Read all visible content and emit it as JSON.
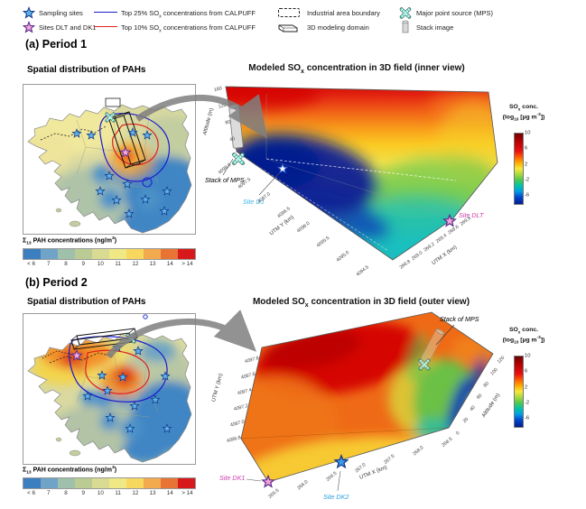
{
  "legend": {
    "items": [
      {
        "label": "Sampling sites"
      },
      {
        "label": "Sites DLT and DK1"
      },
      {
        "pre": "Top 25% SO",
        "sub": "x",
        "post": " concentrations from CALPUFF"
      },
      {
        "pre": "Top 10% SO",
        "sub": "x",
        "post": " concentrations from CALPUFF"
      },
      {
        "label": "Industrial area boundary"
      },
      {
        "label": "3D modeling domain"
      },
      {
        "label": "Major point source (MPS)"
      },
      {
        "label": "Stack image"
      }
    ]
  },
  "pah_colorbar": {
    "label_sigma": "Σ",
    "label_sub": "13",
    "label_main": " PAH concentrations (ng/m",
    "label_sup": "3",
    "label_close": ")",
    "ticks": [
      "< 6",
      "7",
      "8",
      "9",
      "10",
      "11",
      "12",
      "13",
      "14",
      "> 14"
    ],
    "colors": [
      "#3c7fc0",
      "#6fa3c8",
      "#9fc0aa",
      "#bacc93",
      "#d9db93",
      "#f0e884",
      "#f8d75f",
      "#f3a94d",
      "#e97334",
      "#d7191c"
    ]
  },
  "sox_colorbar": {
    "title_pre": "SO",
    "title_sub": "x",
    "title_post": " conc.",
    "unit_pre": "(log",
    "unit_sub": "10",
    "unit_mid": " [µg m",
    "unit_sup": "-3",
    "unit_close": "])",
    "ticks": [
      "10",
      "6",
      "2",
      "-2",
      "-6"
    ]
  },
  "sections": {
    "a": {
      "heading": "(a) Period 1",
      "map_title": "Spatial distribution of PAHs",
      "plot_title_pre": "Modeled SO",
      "plot_title_sub": "x",
      "plot_title_post": " concentration in 3D field (inner view)",
      "axes": {
        "altitude": {
          "label": "Altitude (m)",
          "ticks": [
            "160",
            "120",
            "80",
            "40"
          ]
        },
        "utm_y": {
          "label": "UTM Y (km)",
          "ticks": [
            "4098.0",
            "4097.5",
            "4097.0",
            "4096.5",
            "4096.0",
            "4095.5",
            "4095.0",
            "4094.5"
          ]
        },
        "utm_x": {
          "label": "UTM X (km)",
          "ticks": [
            "268.8",
            "269.0",
            "269.2",
            "269.4",
            "269.6",
            "269.8"
          ]
        }
      },
      "annotations": {
        "stack": "Stack of MPS",
        "site_dj": "Site DJ",
        "site_dlt": "Site DLT"
      }
    },
    "b": {
      "heading": "(b) Period 2",
      "map_title": "Spatial distribution of PAHs",
      "plot_title_pre": "Modeled SO",
      "plot_title_sub": "x",
      "plot_title_post": " concentration in 3D field (outer view)",
      "axes": {
        "altitude": {
          "label": "Altitude (m)",
          "ticks": [
            "0",
            "20",
            "40",
            "60",
            "80",
            "100",
            "120"
          ]
        },
        "utm_y": {
          "label": "UTM Y (km)",
          "ticks": [
            "4097.8",
            "4097.6",
            "4097.4",
            "4097.2",
            "4097.0",
            "4096.8"
          ]
        },
        "utm_x": {
          "label": "UTM X (km)",
          "ticks": [
            "265.5",
            "266.0",
            "266.5",
            "267.0",
            "267.5",
            "268.0",
            "268.5"
          ]
        }
      },
      "annotations": {
        "stack": "Stack of MPS",
        "site_dk1": "Site DK1",
        "site_dk2": "Site DK2"
      }
    }
  },
  "chart_data": [
    {
      "type": "heatmap",
      "panel": "a-map",
      "title": "Spatial distribution of PAHs",
      "period": "Period 1",
      "colorbar_label": "Σ13 PAH concentrations (ng/m3)",
      "colorbar_ticks": [
        "< 6",
        "7",
        "8",
        "9",
        "10",
        "11",
        "12",
        "13",
        "14",
        "> 14"
      ],
      "features": [
        "red PAH hotspot (>14 ng/m3) at city center near Site DLT and 3D modeling domain",
        "low PAH (< 6, blue) over eastern and southern districts",
        "blue Top 25% and red Top 10% SOx CALPUFF contours around industrial area",
        "major point source (teal X) at north edge of domain",
        "sampling site stars distributed across map"
      ]
    },
    {
      "type": "heatmap",
      "panel": "a-3d",
      "title": "Modeled SOx concentration in 3D field (inner view)",
      "xlabel": "UTM X (km)",
      "x_ticks": [
        268.8,
        269.0,
        269.2,
        269.4,
        269.6,
        269.8
      ],
      "ylabel": "UTM Y (km)",
      "y_ticks": [
        4098.0,
        4097.5,
        4097.0,
        4096.5,
        4096.0,
        4095.5,
        4095.0,
        4094.5
      ],
      "zlabel": "Altitude (m)",
      "z_ticks": [
        40,
        80,
        120,
        160
      ],
      "colorbar": {
        "label": "SOx conc. (log10 [µg m-3])",
        "ticks": [
          10,
          6,
          2,
          -2,
          -6
        ]
      },
      "features": [
        "high SOx (red, ~10) along upper altitudes",
        "dark blue low-SOx pool (~-6) at low altitude near Site DJ and stack of MPS",
        "green-cyan mid values toward Site DLT corner"
      ]
    },
    {
      "type": "heatmap",
      "panel": "b-map",
      "title": "Spatial distribution of PAHs",
      "period": "Period 2",
      "colorbar_label": "Σ13 PAH concentrations (ng/m3)",
      "colorbar_ticks": [
        "< 6",
        "7",
        "8",
        "9",
        "10",
        "11",
        "12",
        "13",
        "14",
        "> 14"
      ],
      "features": [
        "orange-red PAH hotspots (>14) in northwest near Site DK1 and at city center",
        "low PAH (< 6, blue) over eastern and southern districts",
        "blue Top 25% and red Top 10% SOx CALPUFF contours",
        "3D modeling domain box oriented east-west with MPS at its east end"
      ]
    },
    {
      "type": "heatmap",
      "panel": "b-3d",
      "title": "Modeled SOx concentration in 3D field (outer view)",
      "xlabel": "UTM X (km)",
      "x_ticks": [
        265.5,
        266.0,
        266.5,
        267.0,
        267.5,
        268.0,
        268.5
      ],
      "ylabel": "UTM Y (km)",
      "y_ticks": [
        4097.8,
        4097.6,
        4097.4,
        4097.2,
        4097.0,
        4096.8
      ],
      "zlabel": "Altitude (m)",
      "z_ticks": [
        0,
        20,
        40,
        60,
        80,
        100,
        120
      ],
      "colorbar": {
        "label": "SOx conc. (log10 [µg m-3])",
        "ticks": [
          10,
          6,
          2,
          -2,
          -6
        ]
      },
      "features": [
        "red high SOx across top surface of domain",
        "yellow-green-blue troughs on eastern face near stack of MPS",
        "Sites DK1 and DK2 marked along front bottom edge"
      ]
    }
  ]
}
